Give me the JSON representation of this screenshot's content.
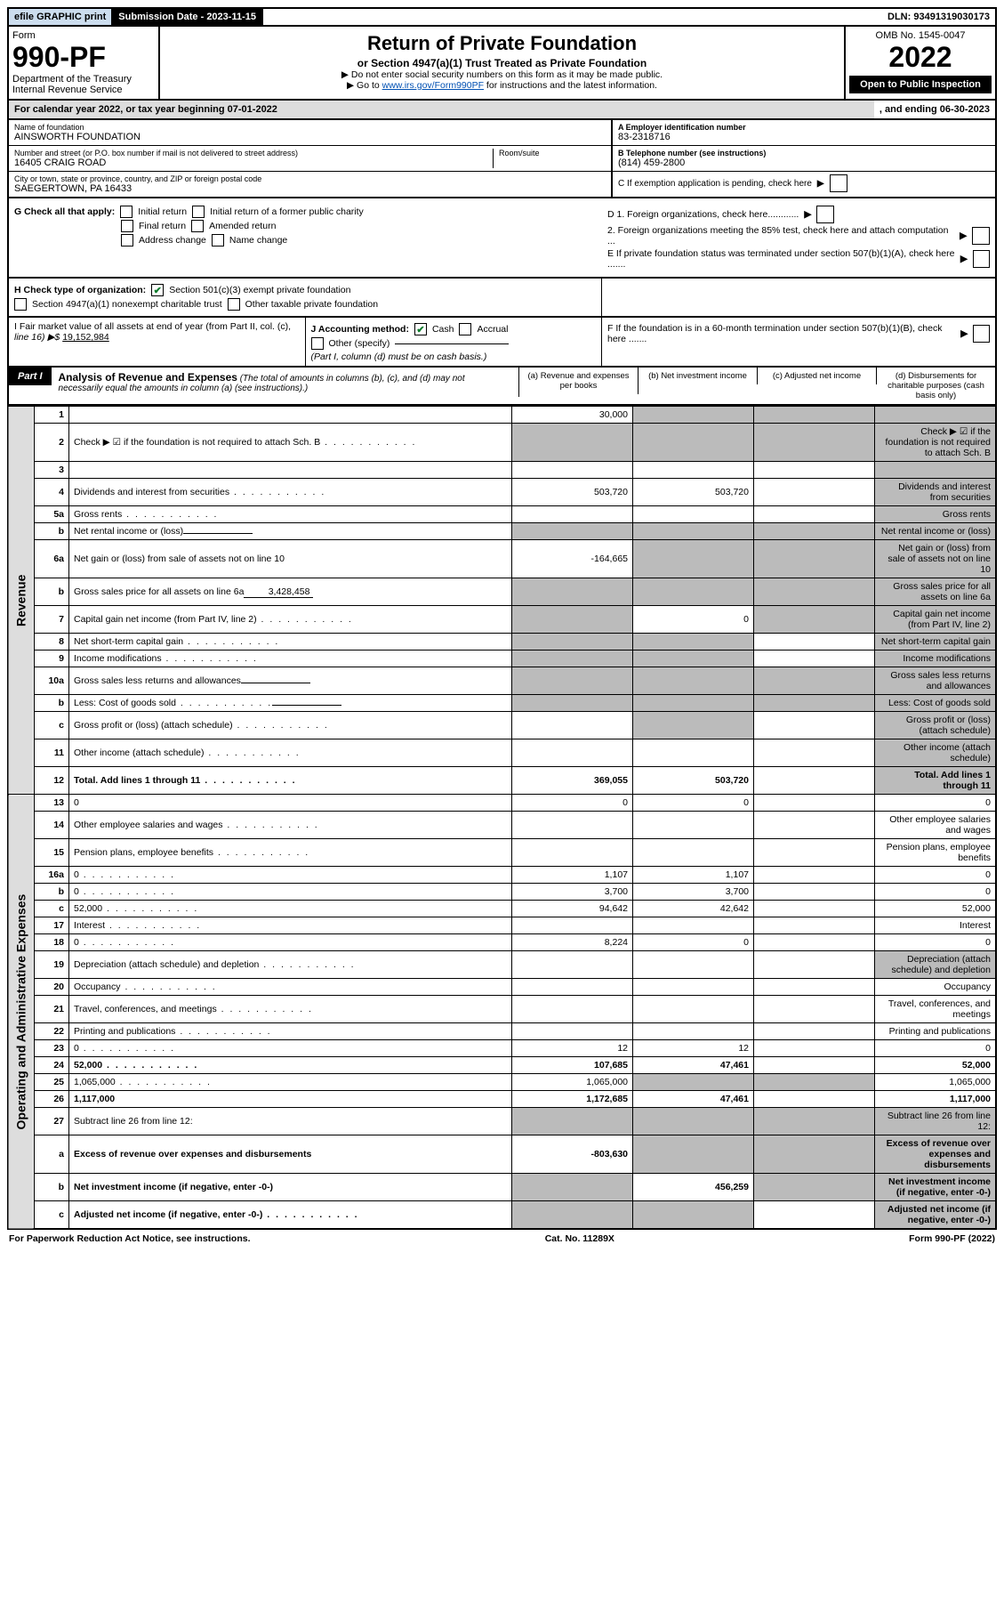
{
  "topbar": {
    "efile": "efile GRAPHIC print",
    "submission": "Submission Date - 2023-11-15",
    "dln": "DLN: 93491319030173"
  },
  "header": {
    "form_word": "Form",
    "form_no": "990-PF",
    "dept": "Department of the Treasury",
    "irs": "Internal Revenue Service",
    "title": "Return of Private Foundation",
    "subtitle": "or Section 4947(a)(1) Trust Treated as Private Foundation",
    "note1": "▶ Do not enter social security numbers on this form as it may be made public.",
    "note2_pre": "▶ Go to ",
    "note2_link": "www.irs.gov/Form990PF",
    "note2_post": " for instructions and the latest information.",
    "omb": "OMB No. 1545-0047",
    "year": "2022",
    "open": "Open to Public Inspection"
  },
  "calyear": {
    "left": "For calendar year 2022, or tax year beginning 07-01-2022",
    "right": ", and ending 06-30-2023"
  },
  "entity": {
    "name_lbl": "Name of foundation",
    "name": "AINSWORTH FOUNDATION",
    "addr_lbl": "Number and street (or P.O. box number if mail is not delivered to street address)",
    "addr": "16405 CRAIG ROAD",
    "room_lbl": "Room/suite",
    "city_lbl": "City or town, state or province, country, and ZIP or foreign postal code",
    "city": "SAEGERTOWN, PA  16433",
    "a_lbl": "A Employer identification number",
    "a_val": "83-2318716",
    "b_lbl": "B Telephone number (see instructions)",
    "b_val": "(814) 459-2800",
    "c_lbl": "C If exemption application is pending, check here",
    "d1": "D 1. Foreign organizations, check here............",
    "d2": "2. Foreign organizations meeting the 85% test, check here and attach computation ...",
    "e": "E  If private foundation status was terminated under section 507(b)(1)(A), check here .......",
    "f": "F  If the foundation is in a 60-month termination under section 507(b)(1)(B), check here .......",
    "g_lbl": "G Check all that apply:",
    "g_opts": [
      "Initial return",
      "Initial return of a former public charity",
      "Final return",
      "Amended return",
      "Address change",
      "Name change"
    ],
    "h_lbl": "H Check type of organization:",
    "h1": "Section 501(c)(3) exempt private foundation",
    "h2": "Section 4947(a)(1) nonexempt charitable trust",
    "h3": "Other taxable private foundation",
    "i_lbl": "I Fair market value of all assets at end of year (from Part II, col. (c),",
    "i_line": "line 16) ▶$ ",
    "i_val": "19,152,984",
    "j_lbl": "J Accounting method:",
    "j_cash": "Cash",
    "j_accrual": "Accrual",
    "j_other": "Other (specify)",
    "j_note": "(Part I, column (d) must be on cash basis.)"
  },
  "part1": {
    "label": "Part I",
    "title": "Analysis of Revenue and Expenses",
    "title_note": " (The total of amounts in columns (b), (c), and (d) may not necessarily equal the amounts in column (a) (see instructions).)",
    "cols": {
      "a": "(a)  Revenue and expenses per books",
      "b": "(b)  Net investment income",
      "c": "(c)  Adjusted net income",
      "d": "(d)  Disbursements for charitable purposes (cash basis only)"
    }
  },
  "sidetabs": {
    "rev": "Revenue",
    "exp": "Operating and Administrative Expenses"
  },
  "rows": [
    {
      "n": "1",
      "d": "",
      "a": "30,000",
      "b": "",
      "c": "",
      "shade_b": true,
      "shade_c": true,
      "shade_d": true
    },
    {
      "n": "2",
      "d": "Check ▶ ☑ if the foundation is not required to attach Sch. B",
      "dots": true,
      "shade_a": true,
      "shade_b": true,
      "shade_c": true,
      "shade_d": true
    },
    {
      "n": "3",
      "d": "",
      "a": "",
      "b": "",
      "c": "",
      "shade_d": true
    },
    {
      "n": "4",
      "d": "Dividends and interest from securities",
      "dots": true,
      "a": "503,720",
      "b": "503,720",
      "c": "",
      "shade_d": true
    },
    {
      "n": "5a",
      "d": "Gross rents",
      "dots": true,
      "a": "",
      "b": "",
      "c": "",
      "shade_d": true
    },
    {
      "n": "b",
      "d": "Net rental income or (loss)",
      "inline": "",
      "shade_a": true,
      "shade_b": true,
      "shade_c": true,
      "shade_d": true
    },
    {
      "n": "6a",
      "d": "Net gain or (loss) from sale of assets not on line 10",
      "a": "-164,665",
      "shade_b": true,
      "shade_c": true,
      "shade_d": true
    },
    {
      "n": "b",
      "d": "Gross sales price for all assets on line 6a",
      "inline": "3,428,458",
      "shade_a": true,
      "shade_b": true,
      "shade_c": true,
      "shade_d": true
    },
    {
      "n": "7",
      "d": "Capital gain net income (from Part IV, line 2)",
      "dots": true,
      "shade_a": true,
      "b": "0",
      "shade_c": true,
      "shade_d": true
    },
    {
      "n": "8",
      "d": "Net short-term capital gain",
      "dots": true,
      "shade_a": true,
      "shade_b": true,
      "c": "",
      "shade_d": true
    },
    {
      "n": "9",
      "d": "Income modifications",
      "dots": true,
      "shade_a": true,
      "shade_b": true,
      "c": "",
      "shade_d": true
    },
    {
      "n": "10a",
      "d": "Gross sales less returns and allowances",
      "inline": "",
      "shade_a": true,
      "shade_b": true,
      "shade_c": true,
      "shade_d": true
    },
    {
      "n": "b",
      "d": "Less: Cost of goods sold",
      "dots": true,
      "inline": "",
      "shade_a": true,
      "shade_b": true,
      "shade_c": true,
      "shade_d": true
    },
    {
      "n": "c",
      "d": "Gross profit or (loss) (attach schedule)",
      "dots": true,
      "a": "",
      "shade_b": true,
      "c": "",
      "shade_d": true
    },
    {
      "n": "11",
      "d": "Other income (attach schedule)",
      "dots": true,
      "a": "",
      "b": "",
      "c": "",
      "shade_d": true
    },
    {
      "n": "12",
      "d": "Total. Add lines 1 through 11",
      "dots": true,
      "bold": true,
      "a": "369,055",
      "b": "503,720",
      "c": "",
      "shade_d": true
    }
  ],
  "exp_rows": [
    {
      "n": "13",
      "d": "0",
      "a": "0",
      "b": "0",
      "c": ""
    },
    {
      "n": "14",
      "d": "Other employee salaries and wages",
      "dots": true
    },
    {
      "n": "15",
      "d": "Pension plans, employee benefits",
      "dots": true
    },
    {
      "n": "16a",
      "d": "0",
      "dots": true,
      "a": "1,107",
      "b": "1,107",
      "c": ""
    },
    {
      "n": "b",
      "d": "0",
      "dots": true,
      "a": "3,700",
      "b": "3,700",
      "c": ""
    },
    {
      "n": "c",
      "d": "52,000",
      "dots": true,
      "a": "94,642",
      "b": "42,642",
      "c": ""
    },
    {
      "n": "17",
      "d": "Interest",
      "dots": true
    },
    {
      "n": "18",
      "d": "0",
      "dots": true,
      "a": "8,224",
      "b": "0",
      "c": ""
    },
    {
      "n": "19",
      "d": "Depreciation (attach schedule) and depletion",
      "dots": true,
      "shade_d": true
    },
    {
      "n": "20",
      "d": "Occupancy",
      "dots": true
    },
    {
      "n": "21",
      "d": "Travel, conferences, and meetings",
      "dots": true
    },
    {
      "n": "22",
      "d": "Printing and publications",
      "dots": true
    },
    {
      "n": "23",
      "d": "0",
      "dots": true,
      "a": "12",
      "b": "12",
      "c": ""
    },
    {
      "n": "24",
      "d": "52,000",
      "dots": true,
      "bold": true,
      "a": "107,685",
      "b": "47,461",
      "c": ""
    },
    {
      "n": "25",
      "d": "1,065,000",
      "dots": true,
      "a": "1,065,000",
      "shade_b": true,
      "shade_c": true
    },
    {
      "n": "26",
      "d": "1,117,000",
      "bold": true,
      "a": "1,172,685",
      "b": "47,461",
      "c": ""
    },
    {
      "n": "27",
      "d": "Subtract line 26 from line 12:",
      "shade_a": true,
      "shade_b": true,
      "shade_c": true,
      "shade_d": true
    },
    {
      "n": "a",
      "d": "Excess of revenue over expenses and disbursements",
      "bold": true,
      "a": "-803,630",
      "shade_b": true,
      "shade_c": true,
      "shade_d": true
    },
    {
      "n": "b",
      "d": "Net investment income (if negative, enter -0-)",
      "bold": true,
      "shade_a": true,
      "b": "456,259",
      "shade_c": true,
      "shade_d": true
    },
    {
      "n": "c",
      "d": "Adjusted net income (if negative, enter -0-)",
      "dots": true,
      "bold": true,
      "shade_a": true,
      "shade_b": true,
      "c": "",
      "shade_d": true
    }
  ],
  "footer": {
    "left": "For Paperwork Reduction Act Notice, see instructions.",
    "mid": "Cat. No. 11289X",
    "right": "Form 990-PF (2022)"
  }
}
